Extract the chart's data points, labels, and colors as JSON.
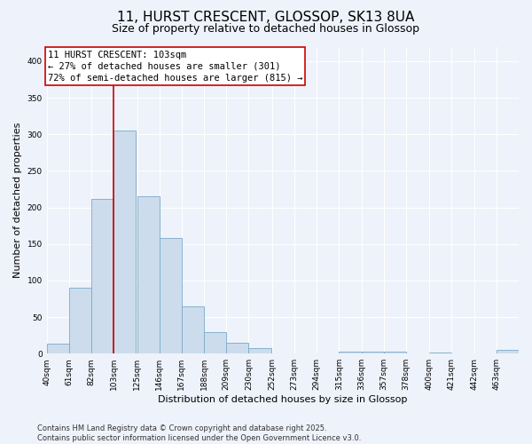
{
  "title1": "11, HURST CRESCENT, GLOSSOP, SK13 8UA",
  "title2": "Size of property relative to detached houses in Glossop",
  "xlabel": "Distribution of detached houses by size in Glossop",
  "ylabel": "Number of detached properties",
  "bar_color": "#ccdcec",
  "bar_edge_color": "#7aaac8",
  "background_color": "#eef2fa",
  "grid_color": "#ffffff",
  "bins_left": [
    40,
    61,
    82,
    103,
    125,
    146,
    167,
    188,
    209,
    230,
    252,
    273,
    294,
    315,
    336,
    357,
    378,
    400,
    421,
    442,
    463
  ],
  "bin_labels": [
    "40sqm",
    "61sqm",
    "82sqm",
    "103sqm",
    "125sqm",
    "146sqm",
    "167sqm",
    "188sqm",
    "209sqm",
    "230sqm",
    "252sqm",
    "273sqm",
    "294sqm",
    "315sqm",
    "336sqm",
    "357sqm",
    "378sqm",
    "400sqm",
    "421sqm",
    "442sqm",
    "463sqm"
  ],
  "values": [
    14,
    90,
    212,
    305,
    215,
    158,
    65,
    30,
    15,
    8,
    0,
    0,
    0,
    3,
    3,
    3,
    0,
    2,
    0,
    0,
    5
  ],
  "bin_width": 21,
  "property_line_x": 103,
  "annotation_line1": "11 HURST CRESCENT: 103sqm",
  "annotation_line2": "← 27% of detached houses are smaller (301)",
  "annotation_line3": "72% of semi-detached houses are larger (815) →",
  "annotation_box_color": "#ffffff",
  "annotation_border_color": "#cc0000",
  "vline_color": "#cc0000",
  "ylim": [
    0,
    420
  ],
  "yticks": [
    0,
    50,
    100,
    150,
    200,
    250,
    300,
    350,
    400
  ],
  "footer_text": "Contains HM Land Registry data © Crown copyright and database right 2025.\nContains public sector information licensed under the Open Government Licence v3.0.",
  "title_fontsize": 11,
  "subtitle_fontsize": 9,
  "axis_label_fontsize": 8,
  "tick_fontsize": 6.5,
  "annotation_fontsize": 7.5,
  "footer_fontsize": 6
}
